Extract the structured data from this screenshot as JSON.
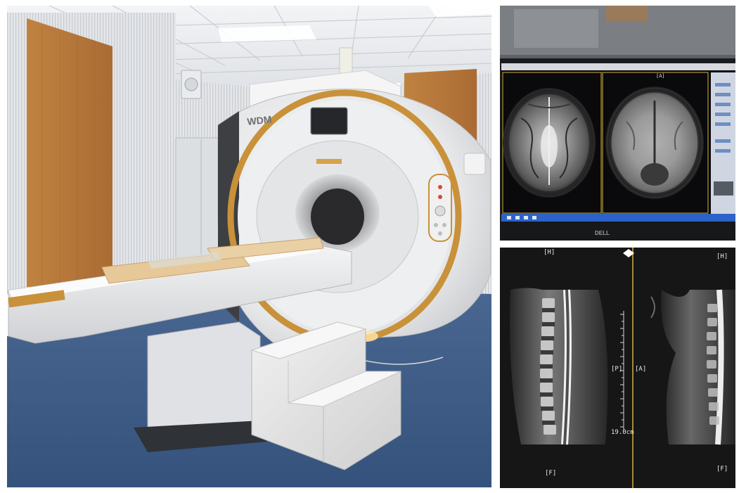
{
  "photo": {
    "brand_text": "WDM"
  },
  "brain_monitor": {
    "view_label": "[A]",
    "monitor_brand": "DELL"
  },
  "spine_view": {
    "top_left_label": "[H]",
    "top_right_label": "[H]",
    "posterior_label": "[P]",
    "anterior_label": "[A]",
    "foot_left_label": "[F]",
    "foot_right_label": "[F]",
    "scale_label": "19.0cm"
  },
  "colors": {
    "gold_trim": "#c8913a",
    "wood_panel": "#b97a3d",
    "carpet": "#3b5a86",
    "screen_blue": "#2d63c8"
  }
}
